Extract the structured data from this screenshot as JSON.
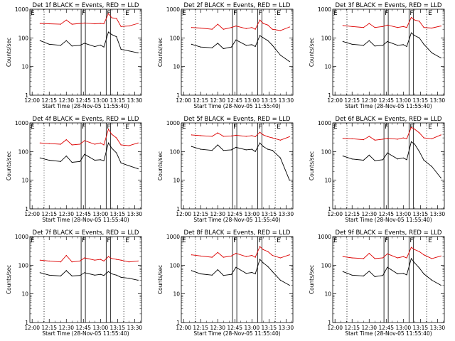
{
  "colors": {
    "events": "#000000",
    "lld": "#dd0000",
    "axis": "#000000"
  },
  "chart_data": [
    {
      "type": "line",
      "title": "Det 1f BLACK = Events, RED = LLD",
      "xlabel": "Start Time (28-Nov-05 11:55:40)",
      "ylabel": "Counts/sec",
      "xlim": [
        "11:58",
        "13:36"
      ],
      "ylim": [
        1,
        1000
      ],
      "yscale": "log",
      "xtick_labels": [
        "12:00",
        "12:15",
        "12:30",
        "12:45",
        "13:00",
        "13:15",
        "13:30"
      ],
      "ytick_labels": [
        "1",
        "10",
        "100",
        "1000"
      ],
      "x": [
        "12:07",
        "12:15",
        "12:25",
        "12:30",
        "12:35",
        "12:42",
        "12:46",
        "12:55",
        "13:00",
        "13:03",
        "13:07",
        "13:10",
        "13:14",
        "13:18",
        "13:25",
        "13:33"
      ],
      "series": [
        {
          "values": [
            320,
            310,
            300,
            420,
            300,
            320,
            330,
            310,
            320,
            310,
            700,
            500,
            480,
            250,
            260,
            320
          ]
        },
        {
          "values": [
            80,
            60,
            55,
            80,
            52,
            55,
            65,
            50,
            56,
            48,
            160,
            130,
            110,
            40,
            35,
            30
          ]
        }
      ],
      "markers": [
        {
          "label": "E",
          "x": "11:58"
        },
        {
          "label": "F",
          "x": "12:43"
        },
        {
          "label": "F",
          "x": "13:05"
        },
        {
          "label": "E",
          "x": "13:18"
        }
      ]
    },
    {
      "type": "line",
      "title": "Det 2f BLACK = Events, RED = LLD",
      "xlabel": "Start Time (28-Nov-05 11:55:40)",
      "ylabel": "Counts/sec",
      "xlim": [
        "11:58",
        "13:36"
      ],
      "ylim": [
        1,
        1000
      ],
      "yscale": "log",
      "xtick_labels": [
        "12:00",
        "12:15",
        "12:30",
        "12:45",
        "13:00",
        "13:15",
        "13:30"
      ],
      "ytick_labels": [
        "1",
        "10",
        "100",
        "1000"
      ],
      "x": [
        "12:07",
        "12:15",
        "12:25",
        "12:30",
        "12:35",
        "12:42",
        "12:46",
        "12:55",
        "13:00",
        "13:03",
        "13:07",
        "13:10",
        "13:14",
        "13:18",
        "13:25",
        "13:33"
      ],
      "series": [
        {
          "values": [
            230,
            220,
            200,
            300,
            200,
            230,
            260,
            210,
            230,
            200,
            420,
            320,
            280,
            200,
            180,
            240
          ]
        },
        {
          "values": [
            60,
            48,
            45,
            65,
            42,
            48,
            85,
            55,
            58,
            50,
            120,
            100,
            80,
            55,
            25,
            15
          ]
        }
      ],
      "markers": [
        {
          "label": "E",
          "x": "11:58"
        },
        {
          "label": "F",
          "x": "12:43"
        },
        {
          "label": "F",
          "x": "13:05"
        },
        {
          "label": "E",
          "x": "13:18"
        }
      ]
    },
    {
      "type": "line",
      "title": "Det 3f BLACK = Events, RED = LLD",
      "xlabel": "Start Time (28-Nov-05 11:55:40)",
      "ylabel": "Counts/sec",
      "xlim": [
        "11:58",
        "13:36"
      ],
      "ylim": [
        1,
        1000
      ],
      "yscale": "log",
      "xtick_labels": [
        "12:00",
        "12:15",
        "12:30",
        "12:45",
        "13:00",
        "13:15",
        "13:30"
      ],
      "ytick_labels": [
        "1",
        "10",
        "100",
        "1000"
      ],
      "x": [
        "12:07",
        "12:15",
        "12:25",
        "12:30",
        "12:35",
        "12:42",
        "12:46",
        "12:55",
        "13:00",
        "13:03",
        "13:07",
        "13:10",
        "13:14",
        "13:18",
        "13:25",
        "13:33"
      ],
      "series": [
        {
          "values": [
            270,
            250,
            230,
            320,
            230,
            250,
            280,
            230,
            250,
            230,
            520,
            420,
            380,
            230,
            220,
            260
          ]
        },
        {
          "values": [
            75,
            60,
            55,
            80,
            52,
            55,
            75,
            55,
            58,
            50,
            150,
            120,
            100,
            60,
            30,
            20
          ]
        }
      ],
      "markers": [
        {
          "label": "E",
          "x": "11:58"
        },
        {
          "label": "F",
          "x": "12:43"
        },
        {
          "label": "F",
          "x": "13:05"
        },
        {
          "label": "E",
          "x": "13:18"
        }
      ]
    },
    {
      "type": "line",
      "title": "Det 4f BLACK = Events, RED = LLD",
      "xlabel": "Start Time (28-Nov-05 11:55:40)",
      "ylabel": "Counts/sec",
      "xlim": [
        "11:58",
        "13:36"
      ],
      "ylim": [
        1,
        1000
      ],
      "yscale": "log",
      "xtick_labels": [
        "12:00",
        "12:15",
        "12:30",
        "12:45",
        "13:00",
        "13:15",
        "13:30"
      ],
      "ytick_labels": [
        "1",
        "10",
        "100",
        "1000"
      ],
      "x": [
        "12:07",
        "12:15",
        "12:25",
        "12:30",
        "12:35",
        "12:42",
        "12:46",
        "12:55",
        "13:00",
        "13:03",
        "13:07",
        "13:10",
        "13:14",
        "13:18",
        "13:25",
        "13:33"
      ],
      "series": [
        {
          "values": [
            200,
            190,
            180,
            260,
            170,
            180,
            240,
            180,
            200,
            170,
            600,
            400,
            300,
            170,
            160,
            200
          ]
        },
        {
          "values": [
            60,
            50,
            45,
            70,
            42,
            45,
            80,
            50,
            52,
            48,
            200,
            130,
            90,
            40,
            32,
            25
          ]
        }
      ],
      "markers": [
        {
          "label": "E",
          "x": "11:58"
        },
        {
          "label": "F",
          "x": "12:43"
        },
        {
          "label": "F",
          "x": "13:05"
        },
        {
          "label": "E",
          "x": "13:18"
        }
      ]
    },
    {
      "type": "line",
      "title": "Det 5f BLACK = Events, RED = LLD",
      "xlabel": "Start Time (28-Nov-05 11:55:40)",
      "ylabel": "Counts/sec",
      "xlim": [
        "11:58",
        "13:36"
      ],
      "ylim": [
        1,
        1000
      ],
      "yscale": "log",
      "xtick_labels": [
        "12:00",
        "12:15",
        "12:30",
        "12:45",
        "13:00",
        "13:15",
        "13:30"
      ],
      "ytick_labels": [
        "1",
        "10",
        "100",
        "1000"
      ],
      "x": [
        "12:07",
        "12:15",
        "12:25",
        "12:30",
        "12:35",
        "12:42",
        "12:46",
        "12:55",
        "13:00",
        "13:03",
        "13:07",
        "13:10",
        "13:14",
        "13:18",
        "13:25",
        "13:33"
      ],
      "series": [
        {
          "values": [
            380,
            360,
            340,
            450,
            340,
            350,
            370,
            340,
            360,
            330,
            470,
            380,
            330,
            300,
            250,
            330
          ]
        },
        {
          "values": [
            150,
            120,
            110,
            170,
            110,
            115,
            140,
            115,
            120,
            100,
            200,
            150,
            120,
            110,
            60,
            10
          ]
        }
      ],
      "markers": [
        {
          "label": "E",
          "x": "11:58"
        },
        {
          "label": "F",
          "x": "12:43"
        },
        {
          "label": "F",
          "x": "13:05"
        },
        {
          "label": "E",
          "x": "13:18"
        }
      ]
    },
    {
      "type": "line",
      "title": "Det 6f BLACK = Events, RED = LLD",
      "xlabel": "Start Time (28-Nov-05 11:55:40)",
      "ylabel": "Counts/sec",
      "xlim": [
        "11:58",
        "13:36"
      ],
      "ylim": [
        1,
        1000
      ],
      "yscale": "log",
      "xtick_labels": [
        "12:00",
        "12:15",
        "12:30",
        "12:45",
        "13:00",
        "13:15",
        "13:30"
      ],
      "ytick_labels": [
        "1",
        "10",
        "100",
        "1000"
      ],
      "x": [
        "12:07",
        "12:15",
        "12:25",
        "12:30",
        "12:35",
        "12:42",
        "12:46",
        "12:55",
        "13:00",
        "13:03",
        "13:07",
        "13:10",
        "13:14",
        "13:18",
        "13:25",
        "13:33"
      ],
      "series": [
        {
          "values": [
            290,
            280,
            260,
            340,
            250,
            270,
            290,
            270,
            300,
            280,
            700,
            600,
            450,
            300,
            280,
            380
          ]
        },
        {
          "values": [
            70,
            55,
            50,
            75,
            48,
            52,
            90,
            55,
            60,
            52,
            220,
            180,
            100,
            50,
            30,
            12
          ]
        }
      ],
      "markers": [
        {
          "label": "E",
          "x": "11:58"
        },
        {
          "label": "F",
          "x": "12:43"
        },
        {
          "label": "F",
          "x": "13:05"
        },
        {
          "label": "E",
          "x": "13:18"
        }
      ]
    },
    {
      "type": "line",
      "title": "Det 7f BLACK = Events, RED = LLD",
      "xlabel": "Start Time (28-Nov-05 11:55:40)",
      "ylabel": "Counts/sec",
      "xlim": [
        "11:58",
        "13:36"
      ],
      "ylim": [
        1,
        1000
      ],
      "yscale": "log",
      "xtick_labels": [
        "12:00",
        "12:15",
        "12:30",
        "12:45",
        "13:00",
        "13:15",
        "13:30"
      ],
      "ytick_labels": [
        "1",
        "10",
        "100",
        "1000"
      ],
      "x": [
        "12:07",
        "12:15",
        "12:25",
        "12:30",
        "12:35",
        "12:42",
        "12:46",
        "12:55",
        "13:00",
        "13:03",
        "13:07",
        "13:10",
        "13:14",
        "13:18",
        "13:25",
        "13:33"
      ],
      "series": [
        {
          "values": [
            150,
            140,
            130,
            220,
            130,
            140,
            180,
            150,
            160,
            140,
            200,
            170,
            160,
            150,
            130,
            140
          ]
        },
        {
          "values": [
            55,
            45,
            42,
            65,
            42,
            44,
            55,
            45,
            48,
            44,
            60,
            50,
            45,
            38,
            35,
            30
          ]
        }
      ],
      "markers": [
        {
          "label": "E",
          "x": "11:58"
        },
        {
          "label": "F",
          "x": "12:43"
        },
        {
          "label": "F",
          "x": "13:05"
        },
        {
          "label": "E",
          "x": "13:18"
        }
      ]
    },
    {
      "type": "line",
      "title": "Det 8f BLACK = Events, RED = LLD",
      "xlabel": "Start Time (28-Nov-05 11:55:40)",
      "ylabel": "Counts/sec",
      "xlim": [
        "11:58",
        "13:36"
      ],
      "ylim": [
        1,
        1000
      ],
      "yscale": "log",
      "xtick_labels": [
        "12:00",
        "12:15",
        "12:30",
        "12:45",
        "13:00",
        "13:15",
        "13:30"
      ],
      "ytick_labels": [
        "1",
        "10",
        "100",
        "1000"
      ],
      "x": [
        "12:07",
        "12:15",
        "12:25",
        "12:30",
        "12:35",
        "12:42",
        "12:46",
        "12:55",
        "13:00",
        "13:03",
        "13:07",
        "13:10",
        "13:14",
        "13:18",
        "13:25",
        "13:33"
      ],
      "series": [
        {
          "values": [
            230,
            210,
            190,
            280,
            190,
            210,
            260,
            200,
            220,
            190,
            450,
            350,
            300,
            220,
            180,
            230
          ]
        },
        {
          "values": [
            65,
            50,
            45,
            70,
            44,
            48,
            85,
            52,
            56,
            50,
            160,
            120,
            90,
            60,
            30,
            20
          ]
        }
      ],
      "markers": [
        {
          "label": "E",
          "x": "11:58"
        },
        {
          "label": "F",
          "x": "12:43"
        },
        {
          "label": "F",
          "x": "13:05"
        },
        {
          "label": "E",
          "x": "13:18"
        }
      ]
    },
    {
      "type": "line",
      "title": "Det 9f BLACK = Events, RED = LLD",
      "xlabel": "Start Time (28-Nov-05 11:55:40)",
      "ylabel": "Counts/sec",
      "xlim": [
        "11:58",
        "13:36"
      ],
      "ylim": [
        1,
        1000
      ],
      "yscale": "log",
      "xtick_labels": [
        "12:00",
        "12:15",
        "12:30",
        "12:45",
        "13:00",
        "13:15",
        "13:30"
      ],
      "ytick_labels": [
        "1",
        "10",
        "100",
        "1000"
      ],
      "x": [
        "12:07",
        "12:15",
        "12:25",
        "12:30",
        "12:35",
        "12:42",
        "12:46",
        "12:55",
        "13:00",
        "13:03",
        "13:07",
        "13:10",
        "13:14",
        "13:18",
        "13:25",
        "13:33"
      ],
      "series": [
        {
          "values": [
            200,
            180,
            170,
            260,
            170,
            180,
            250,
            180,
            200,
            180,
            420,
            350,
            300,
            230,
            170,
            210
          ]
        },
        {
          "values": [
            60,
            45,
            42,
            62,
            40,
            44,
            85,
            50,
            52,
            46,
            170,
            120,
            80,
            50,
            30,
            20
          ]
        }
      ],
      "markers": [
        {
          "label": "E",
          "x": "11:58"
        },
        {
          "label": "F",
          "x": "12:43"
        },
        {
          "label": "F",
          "x": "13:05"
        },
        {
          "label": "E",
          "x": "13:18"
        }
      ]
    }
  ]
}
